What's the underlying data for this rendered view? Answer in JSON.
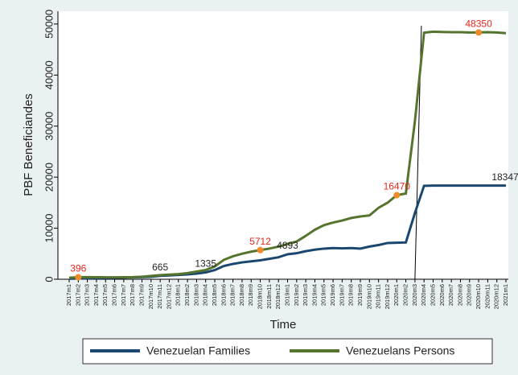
{
  "chart_data": {
    "type": "line",
    "y_label": "PBF Beneficiandes",
    "x_label": "Time",
    "categories": [
      "2017m1",
      "2017m2",
      "2017m3",
      "2017m4",
      "2017m5",
      "2017m6",
      "2017m7",
      "2017m8",
      "2017m9",
      "2017m10",
      "2017m11",
      "2017m12",
      "2018m1",
      "2018m2",
      "2018m3",
      "2018m4",
      "2018m5",
      "2018m6",
      "2018m7",
      "2018m8",
      "2018m9",
      "2018m10",
      "2018m11",
      "2018m12",
      "2019m1",
      "2019m2",
      "2019m3",
      "2019m4",
      "2019m5",
      "2019m6",
      "2019m7",
      "2019m8",
      "2019m9",
      "2019m10",
      "2019m11",
      "2019m12",
      "2020m1",
      "2020m2",
      "2020m3",
      "2020m4",
      "2020m5",
      "2020m6",
      "2020m7",
      "2020m8",
      "2020m9",
      "2020m10",
      "2020m11",
      "2020m12",
      "2021m1"
    ],
    "series": [
      {
        "name": "Venezuelan Families",
        "color": "#1a476f",
        "values": [
          100,
          150,
          200,
          230,
          260,
          300,
          330,
          370,
          420,
          500,
          665,
          750,
          850,
          950,
          1100,
          1335,
          1800,
          2600,
          3000,
          3300,
          3500,
          3700,
          4000,
          4300,
          4893,
          5100,
          5500,
          5800,
          6000,
          6100,
          6050,
          6100,
          6000,
          6400,
          6700,
          7100,
          7150,
          7200,
          13000,
          18300,
          18350,
          18350,
          18350,
          18350,
          18350,
          18350,
          18350,
          18350,
          18347
        ]
      },
      {
        "name": "Venezuelans Persons",
        "color": "#55752f",
        "values": [
          300,
          396,
          420,
          400,
          380,
          370,
          390,
          420,
          500,
          650,
          800,
          900,
          1000,
          1200,
          1500,
          1800,
          2500,
          3800,
          4500,
          5000,
          5400,
          5712,
          6000,
          6400,
          6900,
          7400,
          8500,
          9700,
          10600,
          11100,
          11500,
          12000,
          12300,
          12500,
          14000,
          15000,
          16470,
          16800,
          31000,
          48300,
          48500,
          48450,
          48400,
          48400,
          48350,
          48350,
          48400,
          48350,
          48200
        ]
      }
    ],
    "annotations": [
      {
        "x": "2017m2",
        "value": 396,
        "color": "#e8261c",
        "marker": true
      },
      {
        "x": "2017m11",
        "value": 665,
        "color": "#222222",
        "marker": false
      },
      {
        "x": "2018m4",
        "value": 1335,
        "color": "#222222",
        "marker": false
      },
      {
        "x": "2018m10",
        "value": 5712,
        "color": "#e8261c",
        "marker": true
      },
      {
        "x": "2019m1",
        "value": 4893,
        "color": "#222222",
        "marker": false
      },
      {
        "x": "2020m1",
        "value": 16470,
        "color": "#e8261c",
        "marker": true
      },
      {
        "x": "2020m10",
        "value": 48350,
        "color": "#e8261c",
        "marker": true
      },
      {
        "x": "2021m1",
        "value": 18347,
        "color": "#222222",
        "marker": false
      }
    ],
    "marker_color": "#f08c28",
    "reference_line_x": "2020m3",
    "ylim": [
      0,
      52500
    ],
    "yticks": [
      0,
      10000,
      20000,
      30000,
      40000,
      50000
    ],
    "legend": "bottom"
  }
}
